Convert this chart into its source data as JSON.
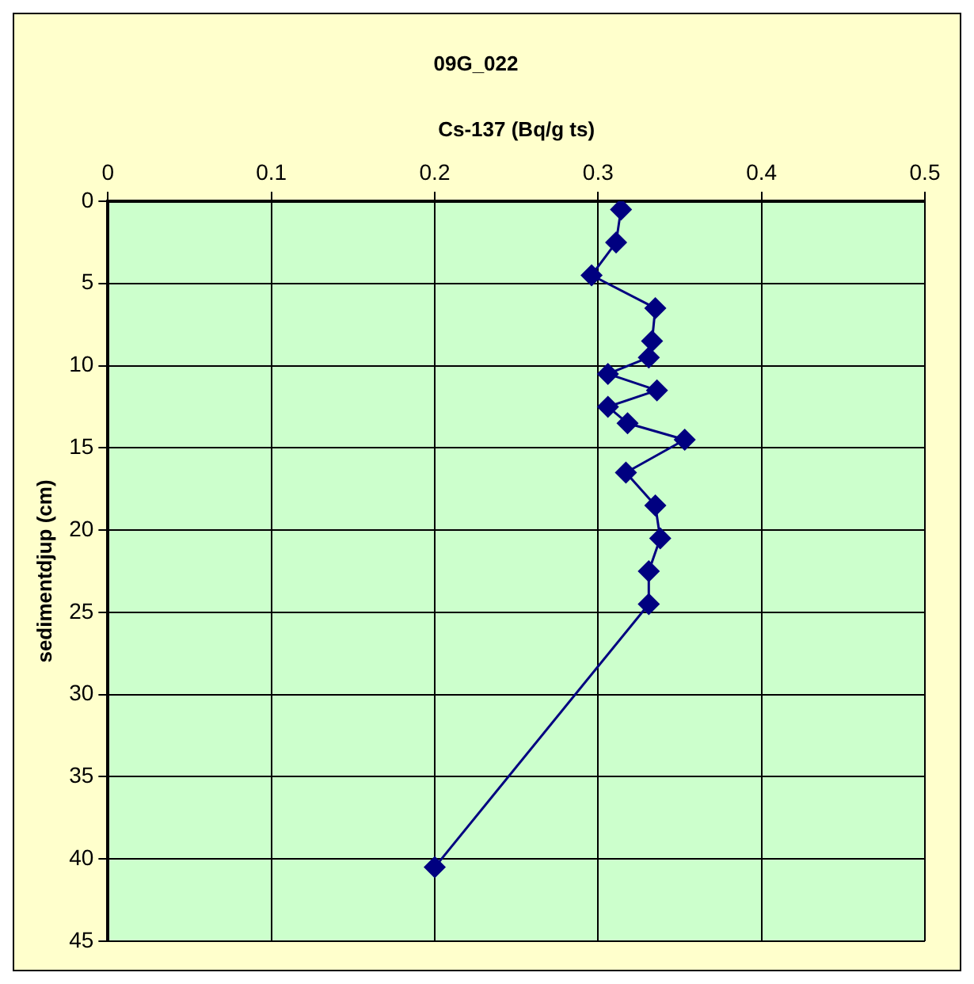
{
  "chart_data": {
    "type": "line",
    "title": "09G_022",
    "xlabel": "Cs-137 (Bq/g ts)",
    "ylabel": "sedimentdjup (cm)",
    "x": [
      0.314,
      0.311,
      0.296,
      0.335,
      0.333,
      0.331,
      0.306,
      0.336,
      0.306,
      0.318,
      0.353,
      0.317,
      0.335,
      0.338,
      0.331,
      0.331,
      0.2
    ],
    "series": [
      {
        "color": "#000080",
        "values": [
          0.5,
          2.5,
          4.5,
          6.5,
          8.5,
          9.5,
          10.5,
          11.5,
          12.5,
          13.5,
          14.5,
          16.5,
          18.5,
          20.5,
          22.5,
          24.5,
          40.5
        ]
      }
    ],
    "xlim": [
      0,
      0.5
    ],
    "xticks": [
      0,
      0.1,
      0.2,
      0.3,
      0.4,
      0.5
    ],
    "ylim": [
      45,
      0
    ],
    "yticks": [
      0,
      5,
      10,
      15,
      20,
      25,
      30,
      35,
      40,
      45
    ],
    "grid": true,
    "legend": false,
    "marker": "diamond",
    "line_style": "solid"
  }
}
